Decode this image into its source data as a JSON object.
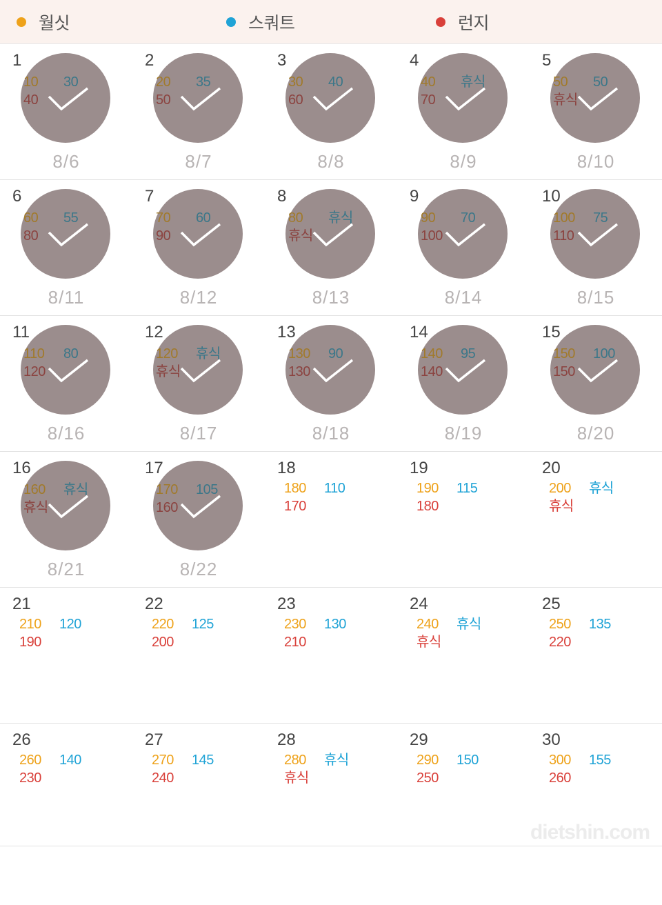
{
  "colors": {
    "wallsit": "#eea21a",
    "squat": "#1fa3d6",
    "lunge": "#d9403a",
    "wallsit_dim": "#a17a2b",
    "squat_dim": "#3b7789",
    "lunge_dim": "#8b4340",
    "circle": "#9b8d8d",
    "legend_bg": "#fbf2ee",
    "date_text": "#b8b4b4"
  },
  "legend": [
    {
      "label": "월싯",
      "colorKey": "wallsit"
    },
    {
      "label": "스쿼트",
      "colorKey": "squat"
    },
    {
      "label": "런지",
      "colorKey": "lunge"
    }
  ],
  "rest_label": "휴식",
  "watermark": "dietshin.com",
  "days": [
    {
      "n": 1,
      "date": "8/6",
      "done": true,
      "wallsit": "10",
      "squat": "30",
      "lunge": "40"
    },
    {
      "n": 2,
      "date": "8/7",
      "done": true,
      "wallsit": "20",
      "squat": "35",
      "lunge": "50"
    },
    {
      "n": 3,
      "date": "8/8",
      "done": true,
      "wallsit": "30",
      "squat": "40",
      "lunge": "60"
    },
    {
      "n": 4,
      "date": "8/9",
      "done": true,
      "wallsit": "40",
      "squat": "휴식",
      "lunge": "70"
    },
    {
      "n": 5,
      "date": "8/10",
      "done": true,
      "wallsit": "50",
      "squat": "50",
      "lunge": "휴식"
    },
    {
      "n": 6,
      "date": "8/11",
      "done": true,
      "wallsit": "60",
      "squat": "55",
      "lunge": "80"
    },
    {
      "n": 7,
      "date": "8/12",
      "done": true,
      "wallsit": "70",
      "squat": "60",
      "lunge": "90"
    },
    {
      "n": 8,
      "date": "8/13",
      "done": true,
      "wallsit": "80",
      "squat": "휴식",
      "lunge": "휴식"
    },
    {
      "n": 9,
      "date": "8/14",
      "done": true,
      "wallsit": "90",
      "squat": "70",
      "lunge": "100"
    },
    {
      "n": 10,
      "date": "8/15",
      "done": true,
      "wallsit": "100",
      "squat": "75",
      "lunge": "110"
    },
    {
      "n": 11,
      "date": "8/16",
      "done": true,
      "wallsit": "110",
      "squat": "80",
      "lunge": "120"
    },
    {
      "n": 12,
      "date": "8/17",
      "done": true,
      "wallsit": "120",
      "squat": "휴식",
      "lunge": "휴식"
    },
    {
      "n": 13,
      "date": "8/18",
      "done": true,
      "wallsit": "130",
      "squat": "90",
      "lunge": "130"
    },
    {
      "n": 14,
      "date": "8/19",
      "done": true,
      "wallsit": "140",
      "squat": "95",
      "lunge": "140"
    },
    {
      "n": 15,
      "date": "8/20",
      "done": true,
      "wallsit": "150",
      "squat": "100",
      "lunge": "150"
    },
    {
      "n": 16,
      "date": "8/21",
      "done": true,
      "wallsit": "160",
      "squat": "휴식",
      "lunge": "휴식"
    },
    {
      "n": 17,
      "date": "8/22",
      "done": true,
      "wallsit": "170",
      "squat": "105",
      "lunge": "160"
    },
    {
      "n": 18,
      "date": "",
      "done": false,
      "wallsit": "180",
      "squat": "110",
      "lunge": "170"
    },
    {
      "n": 19,
      "date": "",
      "done": false,
      "wallsit": "190",
      "squat": "115",
      "lunge": "180"
    },
    {
      "n": 20,
      "date": "",
      "done": false,
      "wallsit": "200",
      "squat": "휴식",
      "lunge": "휴식"
    },
    {
      "n": 21,
      "date": "",
      "done": false,
      "wallsit": "210",
      "squat": "120",
      "lunge": "190"
    },
    {
      "n": 22,
      "date": "",
      "done": false,
      "wallsit": "220",
      "squat": "125",
      "lunge": "200"
    },
    {
      "n": 23,
      "date": "",
      "done": false,
      "wallsit": "230",
      "squat": "130",
      "lunge": "210"
    },
    {
      "n": 24,
      "date": "",
      "done": false,
      "wallsit": "240",
      "squat": "휴식",
      "lunge": "휴식"
    },
    {
      "n": 25,
      "date": "",
      "done": false,
      "wallsit": "250",
      "squat": "135",
      "lunge": "220"
    },
    {
      "n": 26,
      "date": "",
      "done": false,
      "wallsit": "260",
      "squat": "140",
      "lunge": "230"
    },
    {
      "n": 27,
      "date": "",
      "done": false,
      "wallsit": "270",
      "squat": "145",
      "lunge": "240"
    },
    {
      "n": 28,
      "date": "",
      "done": false,
      "wallsit": "280",
      "squat": "휴식",
      "lunge": "휴식"
    },
    {
      "n": 29,
      "date": "",
      "done": false,
      "wallsit": "290",
      "squat": "150",
      "lunge": "250"
    },
    {
      "n": 30,
      "date": "",
      "done": false,
      "wallsit": "300",
      "squat": "155",
      "lunge": "260"
    }
  ]
}
